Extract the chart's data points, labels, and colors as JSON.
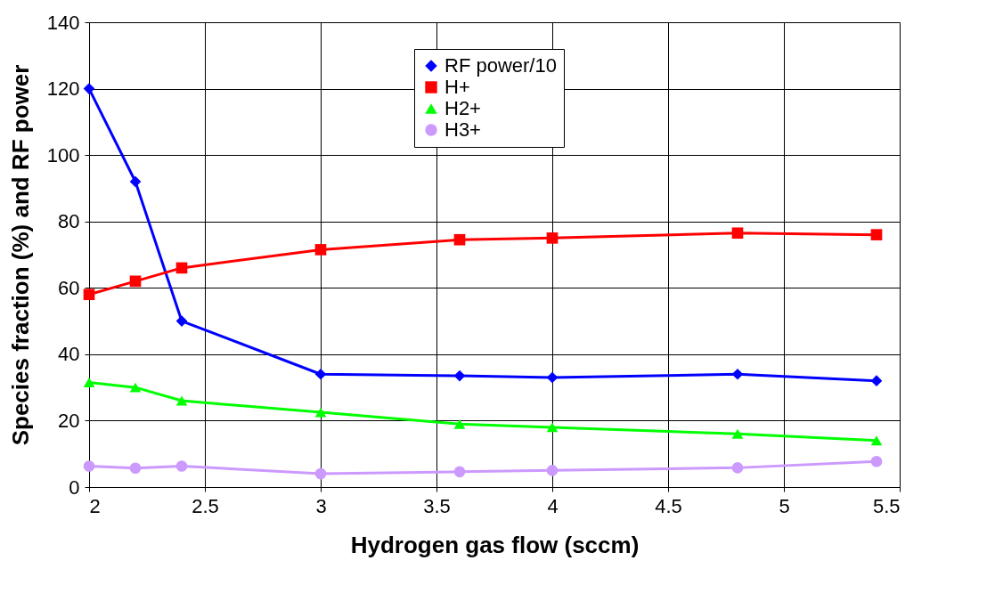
{
  "chart_data": {
    "type": "line",
    "xlabel": "Hydrogen gas flow (sccm)",
    "ylabel": "Species fraction (%) and RF power",
    "x": [
      2,
      2.2,
      2.4,
      3,
      3.6,
      4,
      4.8,
      5.4
    ],
    "series": [
      {
        "name": "RF power/10",
        "color": "#0000ff",
        "marker": "diamond",
        "values": [
          120,
          92,
          50,
          34,
          33.5,
          33,
          34,
          32
        ]
      },
      {
        "name": "H+",
        "color": "#ff0000",
        "marker": "square",
        "values": [
          58,
          62,
          66,
          71.5,
          74.5,
          75,
          76.5,
          76
        ]
      },
      {
        "name": "H2+",
        "color": "#00ff00",
        "marker": "triangle",
        "values": [
          31.5,
          30,
          26,
          22.5,
          19,
          18,
          16,
          14
        ]
      },
      {
        "name": "H3+",
        "color": "#cc99ff",
        "marker": "circle",
        "values": [
          6.3,
          5.7,
          6.3,
          4,
          4.6,
          5,
          5.8,
          7.7
        ]
      }
    ],
    "xlim": [
      2,
      5.5
    ],
    "xticks": [
      2,
      2.5,
      3,
      3.5,
      4,
      4.5,
      5,
      5.5
    ],
    "ylim": [
      0,
      140
    ],
    "yticks": [
      0,
      20,
      40,
      60,
      80,
      100,
      120,
      140
    ],
    "grid": true,
    "legend": "top right"
  }
}
